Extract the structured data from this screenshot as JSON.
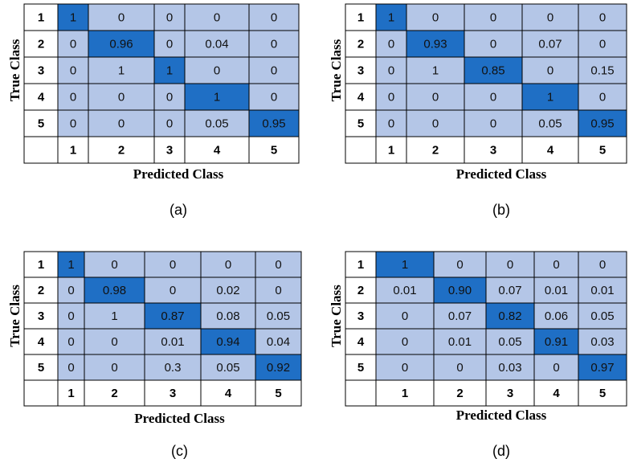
{
  "panels": [
    {
      "caption": "(a)",
      "y_label": "True Class",
      "x_label": "Predicted Class",
      "row_labels": [
        "1",
        "2",
        "3",
        "4",
        "5"
      ],
      "col_labels": [
        "1",
        "2",
        "3",
        "4",
        "5"
      ],
      "cells": [
        [
          "1",
          "0",
          "0",
          "0",
          "0"
        ],
        [
          "0",
          "0.96",
          "0",
          "0.04",
          "0"
        ],
        [
          "0",
          "1",
          "1",
          "0",
          "0"
        ],
        [
          "0",
          "0",
          "0",
          "1",
          "0"
        ],
        [
          "0",
          "0",
          "0",
          "0.05",
          "0.95"
        ]
      ]
    },
    {
      "caption": "(b)",
      "y_label": "True Class",
      "x_label": "Predicted Class",
      "row_labels": [
        "1",
        "2",
        "3",
        "4",
        "5"
      ],
      "col_labels": [
        "1",
        "2",
        "3",
        "4",
        "5"
      ],
      "cells": [
        [
          "1",
          "0",
          "0",
          "0",
          "0"
        ],
        [
          "0",
          "0.93",
          "0",
          "0.07",
          "0"
        ],
        [
          "0",
          "1",
          "0.85",
          "0",
          "0.15"
        ],
        [
          "0",
          "0",
          "0",
          "1",
          "0"
        ],
        [
          "0",
          "0",
          "0",
          "0.05",
          "0.95"
        ]
      ]
    },
    {
      "caption": "(c)",
      "y_label": "True Class",
      "x_label": "Predicted Class",
      "row_labels": [
        "1",
        "2",
        "3",
        "4",
        "5"
      ],
      "col_labels": [
        "1",
        "2",
        "3",
        "4",
        "5"
      ],
      "cells": [
        [
          "1",
          "0",
          "0",
          "0",
          "0"
        ],
        [
          "0",
          "0.98",
          "0",
          "0.02",
          "0"
        ],
        [
          "0",
          "1",
          "0.87",
          "0.08",
          "0.05"
        ],
        [
          "0",
          "0",
          "0.01",
          "0.94",
          "0.04"
        ],
        [
          "0",
          "0",
          "0.3",
          "0.05",
          "0.92"
        ]
      ]
    },
    {
      "caption": "(d)",
      "y_label": "True Class",
      "x_label": "Predicted Class",
      "row_labels": [
        "1",
        "2",
        "3",
        "4",
        "5"
      ],
      "col_labels": [
        "1",
        "2",
        "3",
        "4",
        "5"
      ],
      "cells": [
        [
          "1",
          "0",
          "0",
          "0",
          "0"
        ],
        [
          "0.01",
          "0.90",
          "0.07",
          "0.01",
          "0.01"
        ],
        [
          "0",
          "0.07",
          "0.82",
          "0.06",
          "0.05"
        ],
        [
          "0",
          "0.01",
          "0.05",
          "0.91",
          "0.03"
        ],
        [
          "0",
          "0",
          "0.03",
          "0",
          "0.97"
        ]
      ]
    }
  ]
}
